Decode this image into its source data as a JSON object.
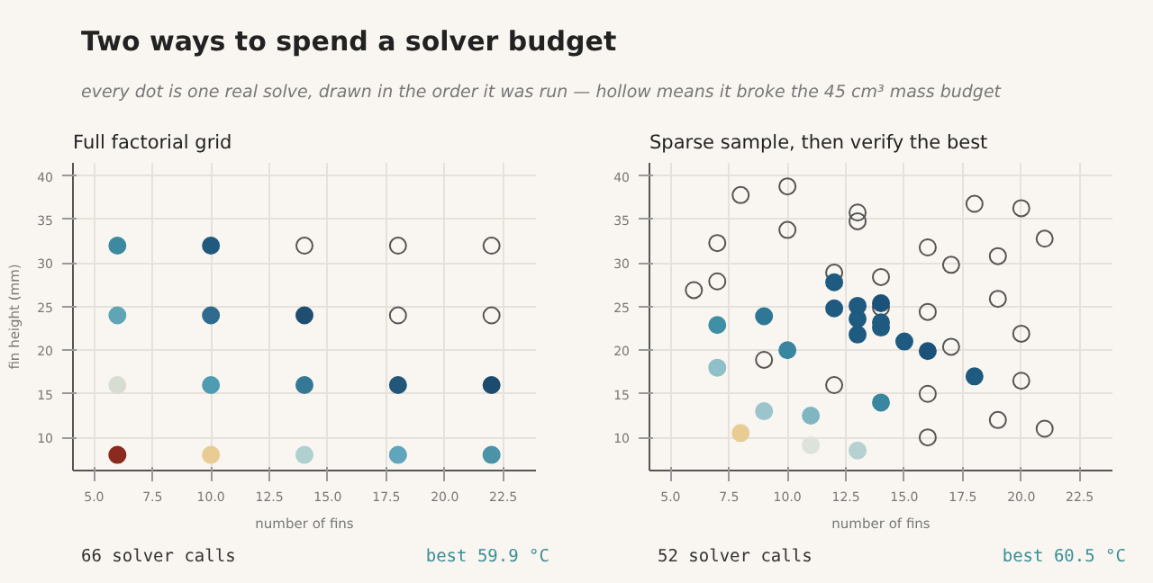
{
  "chart_data": [
    {
      "type": "other",
      "title": "Two ways to spend a solver budget",
      "subtitle": "every dot is one real solve, drawn in the order it was run — hollow means it broke the 45 cm³ mass budget"
    },
    {
      "type": "scatter",
      "title": "Full factorial grid",
      "xlabel": "number of fins",
      "ylabel": "fin height (mm)",
      "xlim": [
        4.1,
        23.9
      ],
      "ylim": [
        6.2,
        41.5
      ],
      "xticks": [
        {
          "value": 5,
          "label": "5.0"
        },
        {
          "value": 7.5,
          "label": "7.5"
        },
        {
          "value": 10,
          "label": "10.0"
        },
        {
          "value": 12.5,
          "label": "12.5"
        },
        {
          "value": 15,
          "label": "15.0"
        },
        {
          "value": 17.5,
          "label": "17.5"
        },
        {
          "value": 20,
          "label": "20.0"
        },
        {
          "value": 22.5,
          "label": "22.5"
        }
      ],
      "yticks": [
        10,
        15,
        20,
        25,
        30,
        35,
        40
      ],
      "grid": true,
      "marker": "circle",
      "series": [
        {
          "x": [
            6,
            10,
            6,
            10,
            14,
            6,
            10,
            14,
            18,
            22,
            6,
            10,
            14,
            18,
            22
          ],
          "values": [
            32,
            32,
            24,
            24,
            24,
            16,
            16,
            16,
            16,
            16,
            8,
            8,
            8,
            8,
            8
          ],
          "colors": [
            "#3d8aa0",
            "#1f5a7e",
            "#5fa5b5",
            "#2e6b8e",
            "#1f4e70",
            "#d8ddd2",
            "#4f9bb2",
            "#347895",
            "#22577a",
            "#1c4b6e",
            "#8b2a1e",
            "#e8cc94",
            "#b0d0cf",
            "#60a5bb",
            "#4b93a8"
          ]
        },
        {
          "x": [
            14,
            18,
            22,
            18,
            22
          ],
          "values": [
            32,
            32,
            32,
            24,
            24
          ],
          "color": "#555555"
        }
      ],
      "annotations": [
        "66 solver calls",
        "best 59.9 °C"
      ]
    },
    {
      "type": "scatter",
      "title": "Sparse sample, then verify the best",
      "xlabel": "number of fins",
      "xlim": [
        4.1,
        23.9
      ],
      "ylim": [
        6.2,
        41.5
      ],
      "xticks": [
        {
          "value": 5,
          "label": "5.0"
        },
        {
          "value": 7.5,
          "label": "7.5"
        },
        {
          "value": 10,
          "label": "10.0"
        },
        {
          "value": 12.5,
          "label": "12.5"
        },
        {
          "value": 15,
          "label": "15.0"
        },
        {
          "value": 17.5,
          "label": "17.5"
        },
        {
          "value": 20,
          "label": "20.0"
        },
        {
          "value": 22.5,
          "label": "22.5"
        }
      ],
      "yticks": [
        10,
        15,
        20,
        25,
        30,
        35,
        40
      ],
      "grid": true,
      "marker": "circle",
      "series": [
        {
          "x": [
            8,
            10,
            13,
            13,
            10,
            18,
            20,
            21,
            7,
            16,
            19,
            17,
            12,
            14,
            7,
            6,
            19,
            14,
            16,
            20,
            17,
            9,
            12,
            20,
            16,
            19,
            21,
            16
          ],
          "values": [
            37.8,
            38.8,
            35.8,
            34.8,
            33.8,
            36.8,
            36.3,
            32.8,
            32.3,
            31.8,
            30.8,
            29.8,
            28.9,
            28.4,
            27.9,
            26.9,
            25.9,
            24.9,
            24.4,
            21.9,
            20.4,
            18.9,
            16,
            16.5,
            15,
            12,
            11,
            10
          ],
          "color": "#555555"
        },
        {
          "x": [
            12,
            12,
            13,
            14,
            13,
            14,
            14,
            13,
            15,
            16,
            18,
            7,
            9,
            10,
            14,
            7,
            9,
            11,
            8,
            11,
            13
          ],
          "values": [
            27.8,
            24.8,
            25.1,
            25.4,
            23.6,
            23.2,
            22.6,
            21.8,
            21,
            19.9,
            17,
            22.9,
            23.9,
            20,
            14,
            18,
            13,
            12.5,
            10.5,
            9.1,
            8.5
          ],
          "colors": [
            "#1f5a80",
            "#1f5a80",
            "#1f5a80",
            "#1c5279",
            "#1f5a80",
            "#1f5a80",
            "#1f5a80",
            "#1f5a80",
            "#1f5a80",
            "#1c5279",
            "#1f5a80",
            "#3f8fa5",
            "#2f7895",
            "#3a86a0",
            "#3a86a0",
            "#8fbfc8",
            "#9cc4cc",
            "#7fb6c2",
            "#e8cc94",
            "#dfe2da",
            "#b5d1d0"
          ]
        }
      ],
      "annotations": [
        "52 solver calls",
        "best 60.5 °C"
      ]
    }
  ]
}
